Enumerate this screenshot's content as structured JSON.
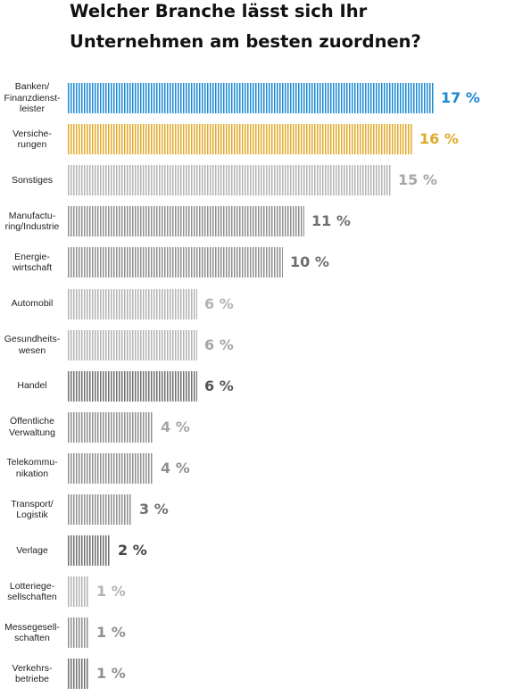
{
  "title": "Welcher Branche lässt sich Ihr Unternehmen am besten zuordnen?",
  "colors": {
    "highlight_blue": "#1a88d3",
    "highlight_gold": "#e0aa2a",
    "light_gray": "#b3b3b3",
    "mid_gray": "#8f8f8f",
    "dark_gray": "#6f6f6f",
    "label_text": "#222222"
  },
  "chart_data": {
    "type": "bar",
    "orientation": "horizontal",
    "categories": [
      "Banken/\nFinanzdienst-\nleister",
      "Versiche-\nrungen",
      "Sonstiges",
      "Manufactu-\nring/Industrie",
      "Energie-\nwirtschaft",
      "Automobil",
      "Gesundheits-\nwesen",
      "Handel",
      "Öffentliche\nVerwaltung",
      "Telekommu-\nnikation",
      "Transport/\nLogistik",
      "Verlage",
      "Lotteriege-\nsellschaften",
      "Messegesell-\nschaften",
      "Verkehrs-\nbetriebe"
    ],
    "values": [
      17,
      16,
      15,
      11,
      10,
      6,
      6,
      6,
      4,
      4,
      3,
      2,
      1,
      1,
      1
    ],
    "value_labels": [
      "17 %",
      "16 %",
      "15 %",
      "11 %",
      "10 %",
      "6 %",
      "6 %",
      "6 %",
      "4 %",
      "4 %",
      "3 %",
      "2 %",
      "1 %",
      "1 %",
      "1 %"
    ],
    "bar_colors": [
      "#1a88d3",
      "#e0aa2a",
      "#b3b3b3",
      "#8f8f8f",
      "#8f8f8f",
      "#b3b3b3",
      "#b3b3b3",
      "#6f6f6f",
      "#8f8f8f",
      "#8f8f8f",
      "#8f8f8f",
      "#6f6f6f",
      "#b3b3b3",
      "#8f8f8f",
      "#6f6f6f"
    ],
    "label_colors": [
      "#1a88d3",
      "#e0aa2a",
      "#a6a6a6",
      "#6f6f6f",
      "#6f6f6f",
      "#b3b3b3",
      "#a6a6a6",
      "#555555",
      "#a6a6a6",
      "#8f8f8f",
      "#6f6f6f",
      "#444444",
      "#b3b3b3",
      "#8f8f8f",
      "#8f8f8f"
    ],
    "bar_texture": "vertical-stripes",
    "xlim": [
      0,
      17
    ],
    "xlabel": "",
    "ylabel": "",
    "grid": false,
    "legend": "none"
  }
}
